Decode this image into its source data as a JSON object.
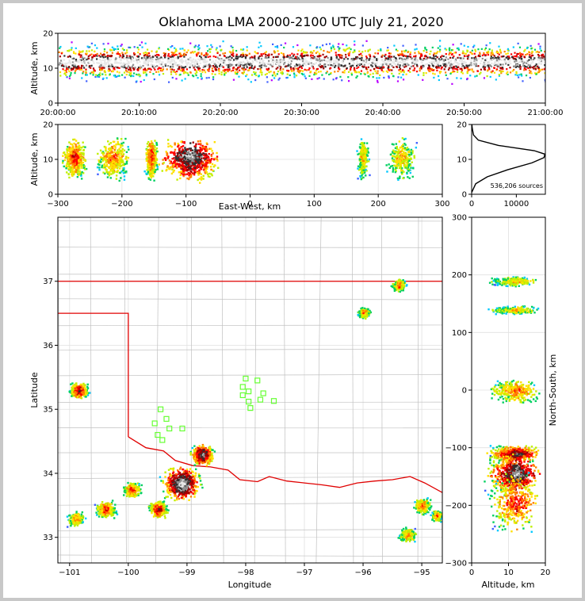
{
  "chart_data": {
    "type": "scatter",
    "title": "Oklahoma LMA 2000-2100 UTC July 21, 2020",
    "colors": {
      "density_scale": [
        "#b800ff",
        "#4060ff",
        "#00c8ff",
        "#00d060",
        "#c0f000",
        "#ffe000",
        "#ff8000",
        "#ff0000",
        "#a00000",
        "#303030",
        "#909090",
        "#e8e8e8"
      ],
      "stations": "#66ff33",
      "state_border": "#e00000",
      "county_lines": "#c0c0c0",
      "profile_line": "#000000"
    },
    "panels": [
      {
        "id": "time-altitude",
        "type": "heatmap",
        "ylabel": "Altitude, km",
        "xlim": [
          "20:00:00",
          "21:00:00"
        ],
        "ylim": [
          0,
          20
        ],
        "xticks": [
          "20:00:00",
          "20:10:00",
          "20:20:00",
          "20:30:00",
          "20:40:00",
          "20:50:00",
          "21:00:00"
        ],
        "yticks": [
          "0",
          "10",
          "20"
        ],
        "band_center_alt_km": 10,
        "band_halfwidth_km": 6
      },
      {
        "id": "eastwest-altitude",
        "type": "heatmap",
        "xlabel": "East-West, km",
        "ylabel": "Altitude, km",
        "xlim": [
          -300,
          300
        ],
        "ylim": [
          0,
          20
        ],
        "xticks": [
          "−300",
          "−200",
          "−100",
          "0",
          "100",
          "200",
          "300"
        ],
        "yticks": [
          "0",
          "10",
          "20"
        ],
        "clusters_x_km": [
          {
            "x": -275,
            "w": 40,
            "intensity": 4
          },
          {
            "x": -215,
            "w": 55,
            "intensity": 3
          },
          {
            "x": -155,
            "w": 20,
            "intensity": 4
          },
          {
            "x": -95,
            "w": 100,
            "intensity": 7
          },
          {
            "x": 175,
            "w": 20,
            "intensity": 2
          },
          {
            "x": 235,
            "w": 50,
            "intensity": 2
          }
        ]
      },
      {
        "id": "altitude-histogram",
        "type": "line",
        "xlim": [
          0,
          16500
        ],
        "ylim": [
          0,
          20
        ],
        "xticks": [
          "0",
          "10000"
        ],
        "yticks": [
          "0",
          "10",
          "20"
        ],
        "annotation": "536,206 sources",
        "profile": [
          {
            "alt": 0.5,
            "count": 0
          },
          {
            "alt": 3,
            "count": 900
          },
          {
            "alt": 5,
            "count": 3500
          },
          {
            "alt": 7,
            "count": 8000
          },
          {
            "alt": 9,
            "count": 13500
          },
          {
            "alt": 10.5,
            "count": 16200
          },
          {
            "alt": 11.5,
            "count": 16400
          },
          {
            "alt": 12.5,
            "count": 14000
          },
          {
            "alt": 14,
            "count": 6000
          },
          {
            "alt": 15.5,
            "count": 1500
          },
          {
            "alt": 17,
            "count": 400
          },
          {
            "alt": 19,
            "count": 120
          },
          {
            "alt": 20,
            "count": 60
          }
        ]
      },
      {
        "id": "plan-view",
        "type": "scatter",
        "xlabel": "Longitude",
        "ylabel": "Latitude",
        "xlim": [
          -101.2,
          -94.65
        ],
        "ylim": [
          32.6,
          38
        ],
        "xticks": [
          "−101",
          "−100",
          "−99",
          "−98",
          "−97",
          "−96",
          "−95"
        ],
        "yticks": [
          "33",
          "34",
          "35",
          "36",
          "37"
        ],
        "storms": [
          {
            "lon": -100.85,
            "lat": 35.3,
            "r": 0.15,
            "intensity": 4
          },
          {
            "lon": -99.1,
            "lat": 33.85,
            "r": 0.3,
            "intensity": 7
          },
          {
            "lon": -98.75,
            "lat": 34.3,
            "r": 0.18,
            "intensity": 6
          },
          {
            "lon": -99.5,
            "lat": 33.45,
            "r": 0.15,
            "intensity": 4
          },
          {
            "lon": -99.95,
            "lat": 33.75,
            "r": 0.14,
            "intensity": 3
          },
          {
            "lon": -100.4,
            "lat": 33.45,
            "r": 0.16,
            "intensity": 3
          },
          {
            "lon": -100.9,
            "lat": 33.3,
            "r": 0.14,
            "intensity": 2
          },
          {
            "lon": -96.0,
            "lat": 36.52,
            "r": 0.1,
            "intensity": 2
          },
          {
            "lon": -95.4,
            "lat": 36.95,
            "r": 0.12,
            "intensity": 2
          },
          {
            "lon": -95.0,
            "lat": 33.5,
            "r": 0.15,
            "intensity": 2
          },
          {
            "lon": -95.25,
            "lat": 33.05,
            "r": 0.14,
            "intensity": 2
          },
          {
            "lon": -94.75,
            "lat": 33.35,
            "r": 0.1,
            "intensity": 2
          }
        ],
        "stations": [
          {
            "lon": -99.45,
            "lat": 35.0
          },
          {
            "lon": -99.35,
            "lat": 34.85
          },
          {
            "lon": -99.55,
            "lat": 34.78
          },
          {
            "lon": -99.3,
            "lat": 34.7
          },
          {
            "lon": -99.5,
            "lat": 34.6
          },
          {
            "lon": -99.42,
            "lat": 34.52
          },
          {
            "lon": -99.08,
            "lat": 34.7
          },
          {
            "lon": -98.0,
            "lat": 35.48
          },
          {
            "lon": -97.8,
            "lat": 35.45
          },
          {
            "lon": -98.05,
            "lat": 35.35
          },
          {
            "lon": -97.95,
            "lat": 35.28
          },
          {
            "lon": -98.05,
            "lat": 35.22
          },
          {
            "lon": -97.7,
            "lat": 35.25
          },
          {
            "lon": -97.75,
            "lat": 35.15
          },
          {
            "lon": -97.95,
            "lat": 35.12
          },
          {
            "lon": -97.52,
            "lat": 35.13
          },
          {
            "lon": -97.92,
            "lat": 35.02
          }
        ]
      },
      {
        "id": "altitude-northsouth",
        "type": "heatmap",
        "xlabel": "Altitude, km",
        "ylabel": "North-South, km",
        "xlim": [
          0,
          20
        ],
        "ylim": [
          -300,
          300
        ],
        "xticks": [
          "0",
          "10",
          "20"
        ],
        "yticks": [
          "−300",
          "−200",
          "−100",
          "0",
          "100",
          "200",
          "300"
        ],
        "clusters_y_km": [
          {
            "y": 190,
            "h": 10,
            "intensity": 2
          },
          {
            "y": 140,
            "h": 8,
            "intensity": 2
          },
          {
            "y": 0,
            "h": 25,
            "intensity": 3
          },
          {
            "y": -110,
            "h": 18,
            "intensity": 6
          },
          {
            "y": -145,
            "h": 40,
            "intensity": 7
          },
          {
            "y": -195,
            "h": 60,
            "intensity": 4
          }
        ]
      }
    ]
  }
}
